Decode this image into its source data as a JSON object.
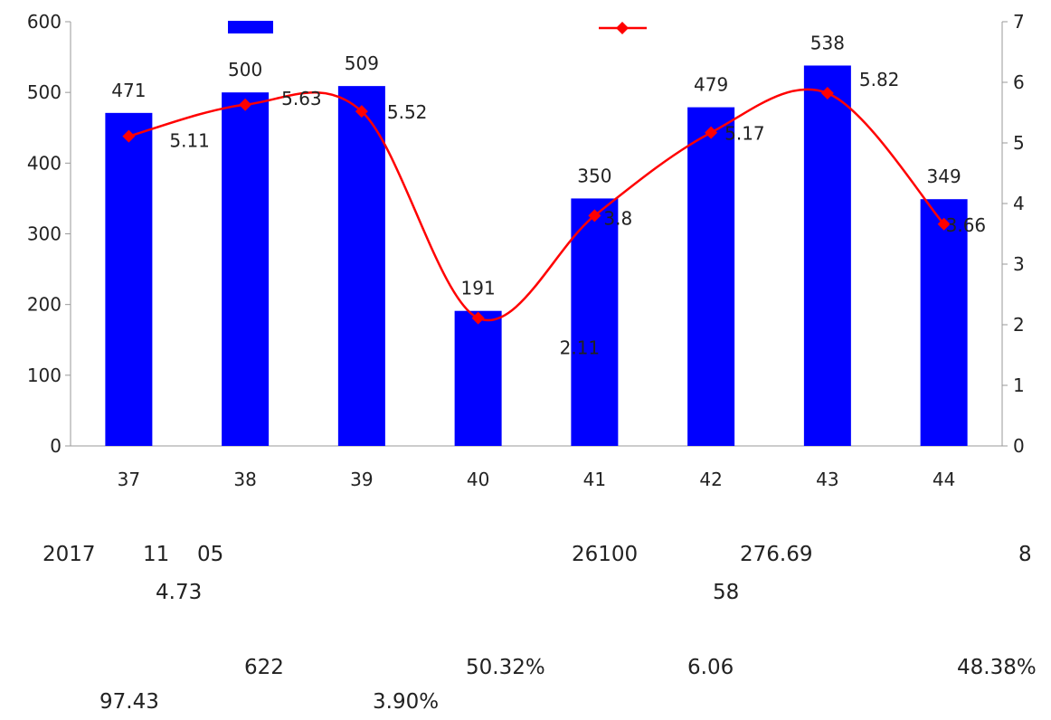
{
  "chart_data": {
    "type": "bar",
    "categories": [
      "37",
      "38",
      "39",
      "40",
      "41",
      "42",
      "43",
      "44"
    ],
    "series": [
      {
        "type": "bar",
        "axis": "left",
        "color": "#0000ff",
        "values": [
          471,
          500,
          509,
          191,
          350,
          479,
          538,
          349
        ]
      },
      {
        "type": "line",
        "axis": "right",
        "color": "#ff0000",
        "marker": "diamond",
        "values": [
          5.11,
          5.63,
          5.52,
          2.11,
          3.8,
          5.17,
          5.82,
          3.66
        ]
      }
    ],
    "ylim": [
      0,
      600
    ],
    "y2lim": [
      0,
      7
    ],
    "yticks": [
      "0",
      "100",
      "200",
      "300",
      "400",
      "500",
      "600"
    ],
    "y2ticks": [
      "0",
      "1",
      "2",
      "3",
      "4",
      "5",
      "6",
      "7"
    ],
    "bar_labels": [
      "471",
      "500",
      "509",
      "191",
      "350",
      "479",
      "538",
      "349"
    ],
    "line_labels": [
      "5.11",
      "5.63",
      "5.52",
      "2.11",
      "3.8",
      "5.17",
      "5.82",
      "3.66"
    ],
    "legend_position": "top",
    "grid": false
  },
  "text": {
    "year": "2017",
    "month": "11",
    "day": "05",
    "n_26100": "26100",
    "n_276_69": "276.69",
    "n_8": "8",
    "n_4_73": "4.73",
    "n_58": "58",
    "n_622": "622",
    "n_50_32": "50.32%",
    "n_6_06": "6.06",
    "n_48_38": "48.38%",
    "n_97_43": "97.43",
    "n_3_90": "3.90%"
  }
}
